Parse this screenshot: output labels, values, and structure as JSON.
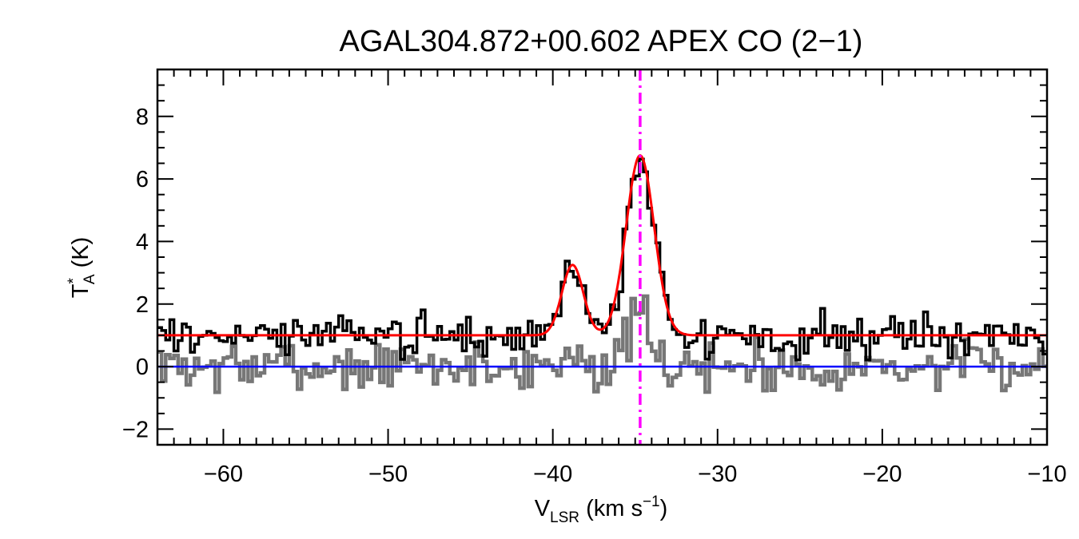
{
  "chart_data": {
    "type": "line",
    "title": "AGAL304.872+00.602  APEX CO (2−1)",
    "xlabel": {
      "main": "V",
      "sub": "LSR",
      "unit_prefix": " (km s",
      "sup": "−1",
      "unit_suffix": ")"
    },
    "ylabel": {
      "main": "T",
      "sup": "*",
      "sub": "A",
      "unit": " (K)"
    },
    "xlim": [
      -64,
      -10
    ],
    "ylim": [
      -2.5,
      9.5
    ],
    "x_ticks": [
      -60,
      -50,
      -40,
      -30,
      -20,
      -10
    ],
    "x_tick_labels": [
      "−60",
      "−50",
      "−40",
      "−30",
      "−20",
      "−10"
    ],
    "y_ticks": [
      -2,
      0,
      2,
      4,
      6,
      8
    ],
    "y_tick_labels": [
      "−2",
      "0",
      "2",
      "4",
      "6",
      "8"
    ],
    "channel_width": 0.25,
    "baseline_offset": 1.0,
    "grid": false,
    "series": [
      {
        "role": "spectrum",
        "style": "step",
        "color": "#000000",
        "peaks": [
          {
            "center": -34.7,
            "amplitude": 5.8,
            "sigma": 0.8
          },
          {
            "center": -38.8,
            "amplitude": 2.3,
            "sigma": 0.65
          }
        ],
        "noise_rms": 0.33
      },
      {
        "role": "residual",
        "style": "step",
        "color": "#777777",
        "peaks": [
          {
            "center": -34.8,
            "amplitude": 1.7,
            "sigma": 0.6
          },
          {
            "center": -38.6,
            "amplitude": 0.5,
            "sigma": 0.6
          }
        ],
        "noise_rms": 0.4
      },
      {
        "role": "gaussian-fit",
        "style": "line",
        "color": "#ff0000",
        "components": [
          {
            "center": -34.7,
            "amplitude": 5.75,
            "sigma": 0.85
          },
          {
            "center": -38.8,
            "amplitude": 2.25,
            "sigma": 0.65
          }
        ]
      }
    ],
    "baseline_zero": {
      "y": 0,
      "color": "#0000ff"
    },
    "velocity_marker": {
      "x": -34.7,
      "color": "#ff00ff",
      "style": "dash-dot"
    }
  }
}
